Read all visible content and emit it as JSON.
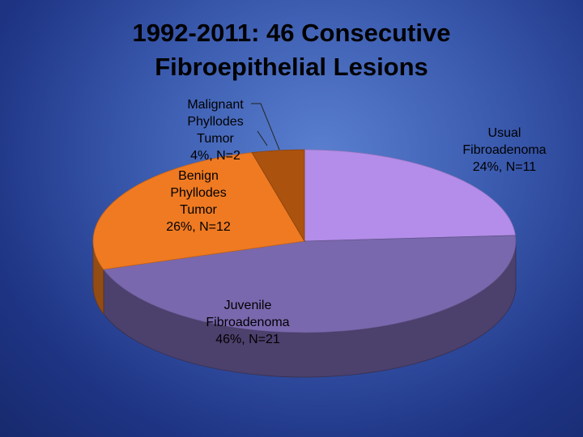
{
  "chart_data": {
    "type": "pie",
    "title": "1992-2011: 46 Consecutive Fibroepithelial Lesions",
    "categories": [
      "Usual Fibroadenoma",
      "Juvenile Fibroadenoma",
      "Benign Phyllodes Tumor",
      "Malignant Phyllodes Tumor"
    ],
    "values": [
      24,
      46,
      26,
      4
    ],
    "value_labels": [
      "24%, N=11",
      "46%, N=21",
      "26%, N=12",
      "4%, N=2"
    ],
    "colors": [
      "#b38de9",
      "#7a68ae",
      "#ef7a22",
      "#ab520e"
    ]
  }
}
